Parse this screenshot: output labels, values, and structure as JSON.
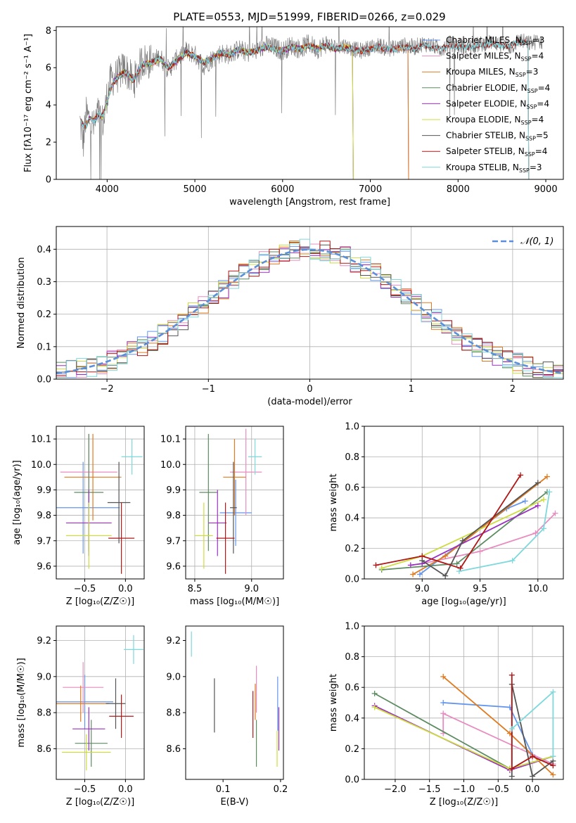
{
  "figure": {
    "title": "PLATE=0553, MJD=51999, FIBERID=0266, z=0.029"
  },
  "colors": {
    "Chabrier MILES": "#6495ED",
    "Salpeter MILES": "#E88CC0",
    "Kroupa MILES": "#E07A20",
    "Chabrier ELODIE": "#5E8C62",
    "Salpeter ELODIE": "#9B30C0",
    "Kroupa ELODIE": "#CDDC40",
    "Chabrier STELIB": "#555555",
    "Salpeter STELIB": "#B01818",
    "Kroupa STELIB": "#7ED8DC",
    "data": "#808080",
    "normal": "#5B8FD8",
    "grid": "#B0B0B0"
  },
  "chart_data": [
    {
      "type": "line",
      "panel": "spectrum",
      "title": "PLATE=0553, MJD=51999, FIBERID=0266, z=0.029",
      "xlabel": "wavelength [Angstrom, rest frame]",
      "ylabel": "Flux [fλ10⁻¹⁷ erg cm⁻² s⁻¹ A⁻¹]",
      "xlim": [
        3420,
        9200
      ],
      "ylim": [
        0,
        8.2
      ],
      "xticks": [
        4000,
        5000,
        6000,
        7000,
        8000,
        9000
      ],
      "yticks": [
        0,
        2,
        4,
        6,
        8
      ],
      "data_trace": {
        "x": [
          3690,
          3730,
          3760,
          3800,
          3850,
          3900,
          3960,
          4000,
          4050,
          4100,
          4200,
          4300,
          4400,
          4500,
          4600,
          4700,
          4800,
          4900,
          5000,
          5100,
          5200,
          5300,
          5400,
          5500,
          5600,
          5700,
          5800,
          5900,
          6000,
          6100,
          6200,
          6300,
          6400,
          6500,
          6600,
          6700,
          6800,
          6900,
          7000,
          7100,
          7200,
          7300,
          7400,
          7500,
          7600,
          7700,
          7800,
          7900,
          8000,
          8100,
          8200,
          8300,
          8400,
          8500,
          8600,
          8700,
          8800,
          8900
        ],
        "y": [
          3.1,
          2.0,
          3.5,
          3.2,
          2.8,
          3.6,
          3.0,
          4.6,
          5.4,
          5.5,
          6.0,
          5.2,
          6.4,
          6.3,
          6.6,
          5.9,
          6.5,
          6.9,
          6.7,
          6.1,
          6.5,
          6.8,
          6.7,
          7.0,
          6.8,
          6.9,
          7.2,
          7.1,
          6.9,
          7.2,
          7.0,
          7.3,
          7.0,
          7.3,
          7.1,
          7.2,
          7.0,
          6.9,
          7.1,
          7.2,
          7.0,
          7.1,
          7.2,
          7.1,
          7.3,
          7.2,
          7.0,
          7.3,
          7.2,
          7.1,
          7.2,
          7.3,
          7.4,
          7.2,
          7.1,
          7.5,
          7.3,
          7.4
        ]
      },
      "legend": [
        {
          "name": "Chabrier MILES",
          "nssp": "3"
        },
        {
          "name": "Salpeter MILES",
          "nssp": "4"
        },
        {
          "name": "Kroupa MILES",
          "nssp": "3"
        },
        {
          "name": "Chabrier ELODIE",
          "nssp": "4"
        },
        {
          "name": "Salpeter ELODIE",
          "nssp": "4"
        },
        {
          "name": "Kroupa ELODIE",
          "nssp": "4"
        },
        {
          "name": "Chabrier STELIB",
          "nssp": "5"
        },
        {
          "name": "Salpeter STELIB",
          "nssp": "4"
        },
        {
          "name": "Kroupa STELIB",
          "nssp": "3"
        }
      ],
      "model_continuum": {
        "x": [
          3700,
          3750,
          3800,
          3850,
          3900,
          3950,
          4000,
          4050,
          4100,
          4200,
          4300,
          4400,
          4500,
          4600,
          4700,
          4800,
          4900,
          5000,
          5100,
          5200,
          5300,
          5400,
          5500,
          5600,
          5700,
          5800,
          5900,
          6000,
          6100,
          6200,
          6300,
          6400,
          6500,
          6600,
          6700,
          6800,
          6900,
          7000,
          7100,
          7200,
          7300,
          7400,
          7500,
          7600,
          7700,
          7800,
          7900,
          8000,
          8100,
          8200,
          8300,
          8400,
          8500,
          8600,
          8700,
          8800,
          8900
        ],
        "y": [
          3.1,
          2.8,
          3.3,
          3.1,
          3.5,
          3.4,
          4.2,
          5.0,
          5.4,
          5.8,
          5.3,
          6.2,
          6.2,
          6.5,
          6.0,
          6.4,
          6.8,
          6.6,
          6.3,
          6.5,
          6.8,
          6.7,
          7.0,
          6.8,
          6.9,
          7.1,
          7.0,
          6.9,
          7.1,
          7.0,
          7.2,
          7.0,
          7.2,
          7.0,
          7.1,
          7.0,
          6.9,
          7.0,
          7.1,
          7.0,
          7.0,
          7.1,
          7.0,
          7.2,
          7.1,
          7.0,
          7.2,
          7.1,
          7.1,
          7.2,
          7.2,
          7.3,
          7.2,
          7.2,
          7.4,
          7.3,
          7.4
        ]
      },
      "model_ranges": [
        {
          "name": "Chabrier MILES",
          "xmax": 7430
        },
        {
          "name": "Salpeter MILES",
          "xmax": 7430
        },
        {
          "name": "Kroupa MILES",
          "xmax": 7430
        },
        {
          "name": "Chabrier ELODIE",
          "xmax": 6800
        },
        {
          "name": "Salpeter ELODIE",
          "xmax": 6800
        },
        {
          "name": "Kroupa ELODIE",
          "xmax": 6800
        },
        {
          "name": "Chabrier STELIB",
          "xmax": 8800
        },
        {
          "name": "Salpeter STELIB",
          "xmax": 8800
        },
        {
          "name": "Kroupa STELIB",
          "xmax": 8800
        }
      ]
    },
    {
      "type": "line",
      "panel": "residual histogram",
      "xlabel": "(data-model)/error",
      "ylabel": "Normed distribution",
      "xlim": [
        -2.5,
        2.5
      ],
      "ylim": [
        0,
        0.47
      ],
      "xticks": [
        -2,
        -1,
        0,
        1,
        2
      ],
      "yticks": [
        0.0,
        0.1,
        0.2,
        0.3,
        0.4
      ],
      "grid": true,
      "legend": [
        {
          "name": "𝒩(0, 1)"
        }
      ],
      "bin_width": 0.1,
      "bin_start": -2.5
    },
    {
      "type": "scatter",
      "panel": "age vs Z",
      "xlabel": "Z [log₁₀(Z/Z☉)]",
      "ylabel": "age  [log₁₀(age/yr)]",
      "xlim": [
        -0.85,
        0.23
      ],
      "ylim": [
        9.55,
        10.15
      ],
      "xticks": [
        -0.5,
        0.0
      ],
      "yticks": [
        9.6,
        9.7,
        9.8,
        9.9,
        10.0,
        10.1
      ],
      "grid": true,
      "points": [
        {
          "name": "Chabrier MILES",
          "x": -0.52,
          "y": 9.83,
          "xerr": 0.45,
          "yerr": 0.18
        },
        {
          "name": "Salpeter MILES",
          "x": -0.45,
          "y": 9.97,
          "xerr": 0.35,
          "yerr": 0.15
        },
        {
          "name": "Kroupa MILES",
          "x": -0.4,
          "y": 9.95,
          "xerr": 0.35,
          "yerr": 0.17
        },
        {
          "name": "Chabrier ELODIE",
          "x": -0.45,
          "y": 9.89,
          "xerr": 0.18,
          "yerr": 0.23
        },
        {
          "name": "Salpeter ELODIE",
          "x": -0.45,
          "y": 9.77,
          "xerr": 0.28,
          "yerr": 0.13
        },
        {
          "name": "Kroupa ELODIE",
          "x": -0.45,
          "y": 9.72,
          "xerr": 0.28,
          "yerr": 0.13
        },
        {
          "name": "Chabrier STELIB",
          "x": -0.08,
          "y": 9.85,
          "xerr": 0.14,
          "yerr": 0.16
        },
        {
          "name": "Salpeter STELIB",
          "x": -0.05,
          "y": 9.71,
          "xerr": 0.16,
          "yerr": 0.14
        },
        {
          "name": "Kroupa STELIB",
          "x": 0.08,
          "y": 10.03,
          "xerr": 0.13,
          "yerr": 0.07
        }
      ]
    },
    {
      "type": "scatter",
      "panel": "age vs mass",
      "xlabel": "mass [log₁₀(M/M☉)]",
      "xlim": [
        8.42,
        9.28
      ],
      "ylim": [
        9.55,
        10.15
      ],
      "xticks": [
        8.5,
        9.0
      ],
      "yticks": [
        9.6,
        9.7,
        9.8,
        9.9,
        10.0,
        10.1
      ],
      "grid": true,
      "points": [
        {
          "name": "Chabrier MILES",
          "x": 8.86,
          "y": 9.81,
          "xerr": 0.14,
          "yerr": 0.13
        },
        {
          "name": "Salpeter MILES",
          "x": 8.95,
          "y": 9.97,
          "xerr": 0.14,
          "yerr": 0.17
        },
        {
          "name": "Kroupa MILES",
          "x": 8.85,
          "y": 9.95,
          "xerr": 0.1,
          "yerr": 0.15
        },
        {
          "name": "Chabrier ELODIE",
          "x": 8.62,
          "y": 9.89,
          "xerr": 0.08,
          "yerr": 0.23
        },
        {
          "name": "Salpeter ELODIE",
          "x": 8.7,
          "y": 9.77,
          "xerr": 0.08,
          "yerr": 0.13
        },
        {
          "name": "Kroupa ELODIE",
          "x": 8.58,
          "y": 9.72,
          "xerr": 0.08,
          "yerr": 0.13
        },
        {
          "name": "Chabrier STELIB",
          "x": 8.84,
          "y": 9.83,
          "xerr": 0.03,
          "yerr": 0.18
        },
        {
          "name": "Salpeter STELIB",
          "x": 8.77,
          "y": 9.71,
          "xerr": 0.08,
          "yerr": 0.14
        },
        {
          "name": "Kroupa STELIB",
          "x": 9.03,
          "y": 10.03,
          "xerr": 0.06,
          "yerr": 0.07
        }
      ]
    },
    {
      "type": "line",
      "panel": "mass weight vs age",
      "xlabel": "age  [log₁₀(age/yr)]",
      "ylabel": "mass weight",
      "xlim": [
        8.5,
        10.22
      ],
      "ylim": [
        0,
        1
      ],
      "xticks": [
        9.0,
        9.5,
        10.0
      ],
      "yticks": [
        0.0,
        0.2,
        0.4,
        0.6,
        0.8,
        1.0
      ],
      "grid": true,
      "series": [
        {
          "name": "Chabrier MILES",
          "x": [
            8.98,
            9.73,
            9.89
          ],
          "y": [
            0.03,
            0.46,
            0.51
          ]
        },
        {
          "name": "Salpeter MILES",
          "x": [
            9.0,
            9.5,
            9.98,
            10.15
          ],
          "y": [
            0.1,
            0.18,
            0.3,
            0.43
          ]
        },
        {
          "name": "Kroupa MILES",
          "x": [
            8.92,
            9.2,
            10.08
          ],
          "y": [
            0.03,
            0.15,
            0.67
          ]
        },
        {
          "name": "Chabrier ELODIE",
          "x": [
            8.65,
            9.3,
            10.08
          ],
          "y": [
            0.06,
            0.1,
            0.57
          ]
        },
        {
          "name": "Salpeter ELODIE",
          "x": [
            8.9,
            9.0,
            10.0
          ],
          "y": [
            0.09,
            0.1,
            0.48
          ]
        },
        {
          "name": "Kroupa ELODIE",
          "x": [
            8.65,
            9.0,
            10.05
          ],
          "y": [
            0.07,
            0.15,
            0.52
          ]
        },
        {
          "name": "Chabrier STELIB",
          "x": [
            9.0,
            9.2,
            9.35,
            10.0
          ],
          "y": [
            0.12,
            0.02,
            0.25,
            0.63
          ]
        },
        {
          "name": "Salpeter STELIB",
          "x": [
            8.6,
            9.0,
            9.33,
            9.85
          ],
          "y": [
            0.09,
            0.15,
            0.07,
            0.68
          ]
        },
        {
          "name": "Kroupa STELIB",
          "x": [
            9.32,
            9.78,
            10.05,
            10.1
          ],
          "y": [
            0.05,
            0.12,
            0.33,
            0.57
          ]
        }
      ]
    },
    {
      "type": "scatter",
      "panel": "mass vs Z",
      "xlabel": "Z [log₁₀(Z/Z☉)]",
      "ylabel": "mass [log₁₀(M/M☉)]",
      "xlim": [
        -0.85,
        0.23
      ],
      "ylim": [
        8.43,
        9.28
      ],
      "xticks": [
        -0.5,
        0.0
      ],
      "yticks": [
        8.6,
        8.8,
        9.0,
        9.2
      ],
      "grid": true,
      "points": [
        {
          "name": "Chabrier MILES",
          "x": -0.5,
          "y": 8.86,
          "xerr": 0.35,
          "yerr": 0.15
        },
        {
          "name": "Salpeter MILES",
          "x": -0.52,
          "y": 8.94,
          "xerr": 0.25,
          "yerr": 0.14
        },
        {
          "name": "Kroupa MILES",
          "x": -0.55,
          "y": 8.85,
          "xerr": 0.35,
          "yerr": 0.1
        },
        {
          "name": "Chabrier ELODIE",
          "x": -0.42,
          "y": 8.63,
          "xerr": 0.2,
          "yerr": 0.13
        },
        {
          "name": "Salpeter ELODIE",
          "x": -0.45,
          "y": 8.71,
          "xerr": 0.2,
          "yerr": 0.12
        },
        {
          "name": "Kroupa ELODIE",
          "x": -0.48,
          "y": 8.58,
          "xerr": 0.3,
          "yerr": 0.1
        },
        {
          "name": "Chabrier STELIB",
          "x": -0.12,
          "y": 8.85,
          "xerr": 0.12,
          "yerr": 0.14
        },
        {
          "name": "Salpeter STELIB",
          "x": -0.05,
          "y": 8.78,
          "xerr": 0.15,
          "yerr": 0.12
        },
        {
          "name": "Kroupa STELIB",
          "x": 0.1,
          "y": 9.15,
          "xerr": 0.12,
          "yerr": 0.08
        }
      ]
    },
    {
      "type": "scatter",
      "panel": "mass vs E(B-V)",
      "xlabel": "E(B-V)",
      "xlim": [
        0.035,
        0.205
      ],
      "ylim": [
        8.43,
        9.28
      ],
      "xticks": [
        0.1,
        0.2
      ],
      "yticks": [
        8.6,
        8.8,
        9.0,
        9.2
      ],
      "points": [
        {
          "name": "Kroupa STELIB",
          "x": 0.045,
          "y": 9.18,
          "xerr": 0.0,
          "yerr": 0.07
        },
        {
          "name": "Chabrier STELIB",
          "x": 0.085,
          "y": 8.84,
          "xerr": 0.0,
          "yerr": 0.15
        },
        {
          "name": "Salpeter STELIB",
          "x": 0.152,
          "y": 8.79,
          "xerr": 0.0,
          "yerr": 0.13
        },
        {
          "name": "Chabrier ELODIE",
          "x": 0.158,
          "y": 8.63,
          "xerr": 0.0,
          "yerr": 0.13
        },
        {
          "name": "Kroupa MILES",
          "x": 0.156,
          "y": 8.86,
          "xerr": 0.0,
          "yerr": 0.1
        },
        {
          "name": "Salpeter MILES",
          "x": 0.158,
          "y": 8.93,
          "xerr": 0.0,
          "yerr": 0.13
        },
        {
          "name": "Chabrier MILES",
          "x": 0.195,
          "y": 8.85,
          "xerr": 0.0,
          "yerr": 0.15
        },
        {
          "name": "Salpeter ELODIE",
          "x": 0.197,
          "y": 8.71,
          "xerr": 0.0,
          "yerr": 0.12
        },
        {
          "name": "Kroupa ELODIE",
          "x": 0.194,
          "y": 8.6,
          "xerr": 0.0,
          "yerr": 0.1
        }
      ]
    },
    {
      "type": "line",
      "panel": "mass weight vs Z",
      "xlabel": "Z [log₁₀(Z/Z☉)]",
      "ylabel": "mass weight",
      "xlim": [
        -2.45,
        0.45
      ],
      "ylim": [
        0,
        1
      ],
      "xticks": [
        -2.0,
        -1.5,
        -1.0,
        -0.5,
        0.0
      ],
      "yticks": [
        0.0,
        0.2,
        0.4,
        0.6,
        0.8,
        1.0
      ],
      "grid": true,
      "series": [
        {
          "name": "Chabrier MILES",
          "x": [
            -1.3,
            -0.33,
            0.0,
            0.3
          ],
          "y": [
            0.5,
            0.47,
            0.16,
            0.1
          ]
        },
        {
          "name": "Salpeter MILES",
          "x": [
            -1.3,
            -1.3,
            0.3
          ],
          "y": [
            0.3,
            0.43,
            0.1
          ]
        },
        {
          "name": "Kroupa MILES",
          "x": [
            -1.3,
            -0.33,
            0.3
          ],
          "y": [
            0.67,
            0.3,
            0.03
          ]
        },
        {
          "name": "Chabrier ELODIE",
          "x": [
            -2.3,
            -0.33,
            0.3
          ],
          "y": [
            0.56,
            0.07,
            0.15
          ]
        },
        {
          "name": "Salpeter ELODIE",
          "x": [
            -2.3,
            -0.33,
            0.3
          ],
          "y": [
            0.48,
            0.06,
            0.15
          ]
        },
        {
          "name": "Kroupa ELODIE",
          "x": [
            -2.3,
            -0.33,
            0.3
          ],
          "y": [
            0.47,
            0.07,
            0.15
          ]
        },
        {
          "name": "Chabrier STELIB",
          "x": [
            -0.3,
            -0.3,
            0.0,
            0.3
          ],
          "y": [
            0.02,
            0.62,
            0.02,
            0.12
          ]
        },
        {
          "name": "Salpeter STELIB",
          "x": [
            -0.3,
            -0.3,
            0.0,
            0.3
          ],
          "y": [
            0.68,
            0.07,
            0.15,
            0.09
          ]
        },
        {
          "name": "Kroupa STELIB",
          "x": [
            -0.3,
            0.3,
            0.3
          ],
          "y": [
            0.33,
            0.57,
            0.15
          ]
        }
      ]
    }
  ],
  "text": {
    "nssp_prefix": ", N",
    "nssp_sub": "SSP",
    "legend_normal": "𝒩(0, 1)"
  }
}
